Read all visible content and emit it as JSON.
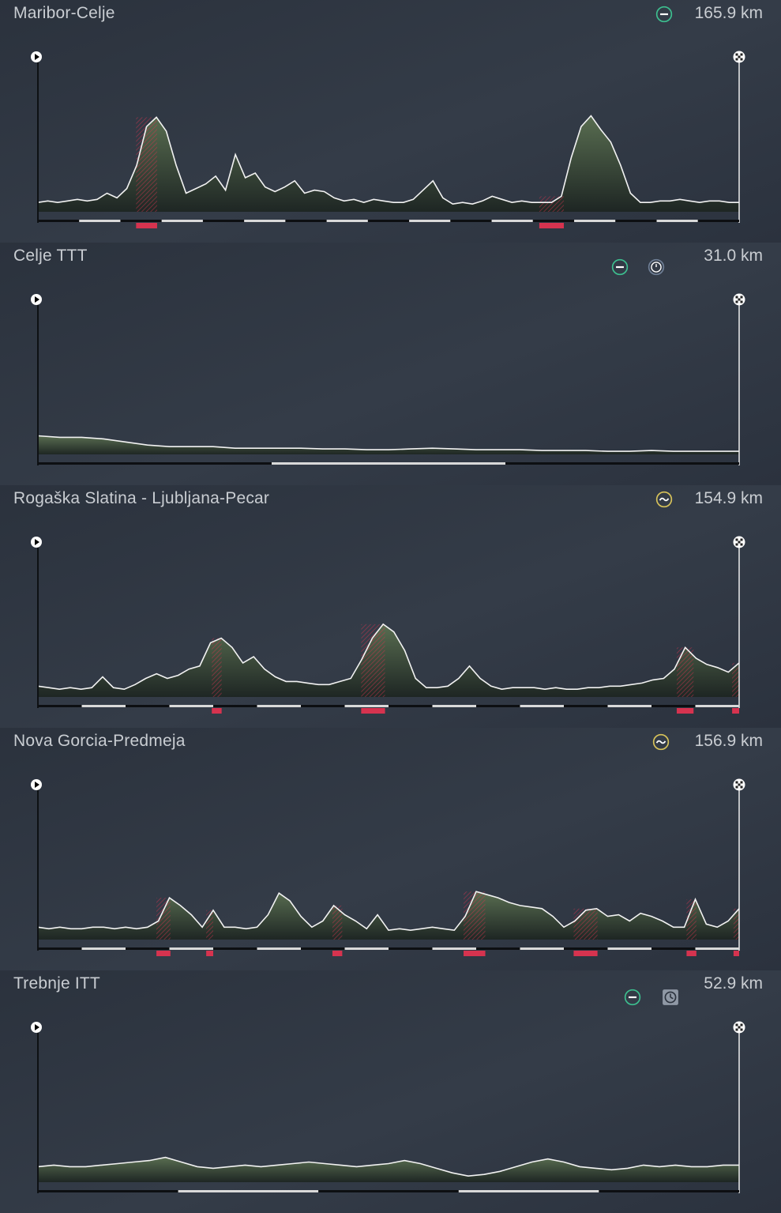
{
  "colors": {
    "background": "#2f3743",
    "terrain": "#5d7352",
    "terrain_dark": "#1c2420",
    "climb_marker": "#d6334f",
    "profile_line": "#f2f2f2",
    "flat_icon": "#3dbf8f",
    "hilly_icon": "#d8c35a"
  },
  "stages": [
    {
      "title": "Maribor-Celje",
      "distance": "165.9 km",
      "icons": [
        "flat-stage-icon"
      ],
      "profile": [
        0.06,
        0.07,
        0.06,
        0.07,
        0.08,
        0.07,
        0.08,
        0.12,
        0.09,
        0.15,
        0.3,
        0.55,
        0.61,
        0.52,
        0.3,
        0.12,
        0.15,
        0.18,
        0.23,
        0.14,
        0.37,
        0.22,
        0.25,
        0.16,
        0.13,
        0.16,
        0.2,
        0.12,
        0.14,
        0.13,
        0.09,
        0.07,
        0.08,
        0.06,
        0.08,
        0.07,
        0.06,
        0.06,
        0.08,
        0.14,
        0.2,
        0.09,
        0.05,
        0.06,
        0.05,
        0.07,
        0.1,
        0.08,
        0.06,
        0.07,
        0.06,
        0.06,
        0.06,
        0.1,
        0.35,
        0.55,
        0.62,
        0.53,
        0.45,
        0.3,
        0.12,
        0.06,
        0.06,
        0.07,
        0.07,
        0.08,
        0.07,
        0.06,
        0.07,
        0.07,
        0.06,
        0.06
      ],
      "climbs": [
        [
          0.14,
          0.17
        ],
        [
          0.715,
          0.75
        ]
      ],
      "climb_shading": [
        [
          0.14,
          0.17
        ],
        [
          0.715,
          0.75
        ]
      ],
      "segments": 17
    },
    {
      "title": "Celje TTT",
      "distance": "31.0 km",
      "icons": [
        "flat-stage-icon",
        "team-time-trial-icon"
      ],
      "profile": [
        0.12,
        0.11,
        0.11,
        0.1,
        0.08,
        0.06,
        0.05,
        0.05,
        0.05,
        0.04,
        0.04,
        0.04,
        0.04,
        0.035,
        0.035,
        0.03,
        0.03,
        0.035,
        0.04,
        0.035,
        0.03,
        0.03,
        0.03,
        0.025,
        0.025,
        0.025,
        0.02,
        0.02,
        0.025,
        0.02,
        0.02,
        0.02,
        0.02
      ],
      "climbs": [],
      "climb_shading": [],
      "segments": 3
    },
    {
      "title": "Rogaška Slatina - Ljubljana-Pecar",
      "distance": "154.9 km",
      "icons": [
        "hilly-stage-icon"
      ],
      "profile": [
        0.07,
        0.06,
        0.05,
        0.06,
        0.05,
        0.06,
        0.13,
        0.06,
        0.05,
        0.08,
        0.12,
        0.15,
        0.12,
        0.14,
        0.18,
        0.2,
        0.35,
        0.38,
        0.32,
        0.22,
        0.26,
        0.18,
        0.13,
        0.1,
        0.1,
        0.09,
        0.08,
        0.08,
        0.1,
        0.12,
        0.24,
        0.38,
        0.47,
        0.42,
        0.3,
        0.12,
        0.06,
        0.06,
        0.07,
        0.12,
        0.2,
        0.12,
        0.07,
        0.05,
        0.06,
        0.06,
        0.06,
        0.05,
        0.06,
        0.05,
        0.05,
        0.06,
        0.06,
        0.07,
        0.07,
        0.08,
        0.09,
        0.11,
        0.12,
        0.18,
        0.32,
        0.25,
        0.21,
        0.19,
        0.16,
        0.22
      ],
      "climbs": [
        [
          0.248,
          0.262
        ],
        [
          0.461,
          0.495
        ],
        [
          0.911,
          0.935
        ],
        [
          0.99,
          1.0
        ]
      ],
      "climb_shading": [
        [
          0.248,
          0.262
        ],
        [
          0.461,
          0.495
        ],
        [
          0.911,
          0.935
        ],
        [
          0.99,
          1.0
        ]
      ],
      "segments": 16
    },
    {
      "title": "Nova Gorcia-Predmeja",
      "distance": "156.9 km",
      "icons": [
        "hilly-stage-icon"
      ],
      "profile": [
        0.08,
        0.07,
        0.08,
        0.07,
        0.07,
        0.08,
        0.08,
        0.07,
        0.08,
        0.07,
        0.08,
        0.12,
        0.27,
        0.22,
        0.16,
        0.08,
        0.19,
        0.08,
        0.08,
        0.07,
        0.08,
        0.16,
        0.3,
        0.25,
        0.15,
        0.08,
        0.12,
        0.22,
        0.16,
        0.12,
        0.07,
        0.16,
        0.06,
        0.07,
        0.06,
        0.07,
        0.08,
        0.07,
        0.06,
        0.15,
        0.31,
        0.29,
        0.27,
        0.24,
        0.22,
        0.21,
        0.2,
        0.15,
        0.08,
        0.12,
        0.19,
        0.2,
        0.15,
        0.16,
        0.12,
        0.17,
        0.15,
        0.12,
        0.08,
        0.08,
        0.26,
        0.1,
        0.08,
        0.12,
        0.2
      ],
      "climbs": [
        [
          0.169,
          0.189
        ],
        [
          0.24,
          0.25
        ],
        [
          0.42,
          0.434
        ],
        [
          0.607,
          0.638
        ],
        [
          0.764,
          0.798
        ],
        [
          0.925,
          0.939
        ],
        [
          0.992,
          1.0
        ]
      ],
      "climb_shading": [
        [
          0.169,
          0.189
        ],
        [
          0.24,
          0.25
        ],
        [
          0.42,
          0.434
        ],
        [
          0.607,
          0.638
        ],
        [
          0.764,
          0.798
        ],
        [
          0.925,
          0.939
        ],
        [
          0.992,
          1.0
        ]
      ],
      "segments": 16
    },
    {
      "title": "Trebnje ITT",
      "distance": "52.9 km",
      "icons": [
        "flat-stage-icon",
        "individual-time-trial-icon"
      ],
      "profile": [
        0.1,
        0.11,
        0.1,
        0.1,
        0.11,
        0.12,
        0.13,
        0.14,
        0.16,
        0.13,
        0.1,
        0.09,
        0.1,
        0.11,
        0.1,
        0.11,
        0.12,
        0.13,
        0.12,
        0.11,
        0.1,
        0.11,
        0.12,
        0.14,
        0.12,
        0.09,
        0.06,
        0.04,
        0.05,
        0.07,
        0.1,
        0.13,
        0.15,
        0.13,
        0.1,
        0.09,
        0.08,
        0.09,
        0.11,
        0.1,
        0.11,
        0.1,
        0.1,
        0.11,
        0.11
      ],
      "climbs": [],
      "climb_shading": [],
      "segments": 5
    }
  ]
}
